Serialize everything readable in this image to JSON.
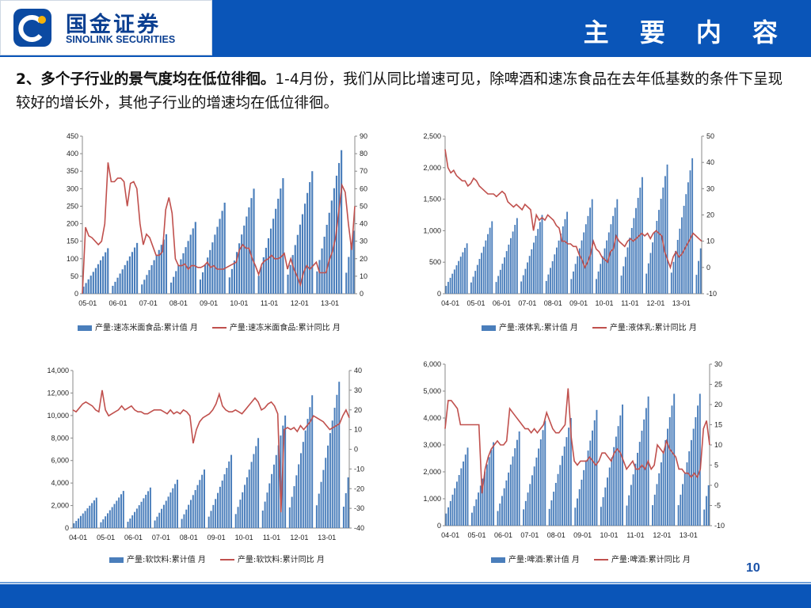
{
  "header": {
    "logo_cn": "国金证券",
    "logo_en": "SINOLINK SECURITIES",
    "title": "主 要 内 容"
  },
  "intro": {
    "lead": "2、多个子行业的景气度均在低位徘徊。",
    "body": "1-4月份，我们从同比增速可见，除啤酒和速冻食品在去年低基数的条件下呈现较好的增长外，其他子行业的增速均在低位徘徊。"
  },
  "page_number": "10",
  "colors": {
    "bar": "#4a7ebb",
    "line": "#c0504d",
    "brand": "#0a55b8"
  },
  "chart_data": [
    {
      "id": "frozen",
      "type": "bar",
      "x_tick_labels": [
        "05-01",
        "06-01",
        "07-01",
        "08-01",
        "09-01",
        "10-01",
        "11-01",
        "12-01",
        "13-01"
      ],
      "y_left_ticks": [
        "450",
        "400",
        "350",
        "300",
        "250",
        "200",
        "150",
        "100",
        "50",
        "0"
      ],
      "y_right_ticks": [
        "90",
        "80",
        "70",
        "60",
        "50",
        "40",
        "30",
        "20",
        "10",
        "0"
      ],
      "ylim_left": [
        0,
        450
      ],
      "ylim_right": [
        0,
        90
      ],
      "years_ann_max": [
        130,
        145,
        170,
        205,
        260,
        300,
        330,
        350,
        410
      ],
      "partial_last_year": [
        60,
        105,
        145,
        180
      ],
      "yoy": [
        0,
        38,
        33,
        32,
        30,
        28,
        30,
        40,
        75,
        64,
        64,
        66,
        66,
        64,
        50,
        63,
        64,
        60,
        40,
        28,
        34,
        32,
        27,
        22,
        22,
        24,
        48,
        55,
        46,
        20,
        16,
        16,
        17,
        14,
        16,
        16,
        15,
        15,
        16,
        18,
        15,
        16,
        14,
        14,
        14,
        15,
        16,
        17,
        18,
        25,
        28,
        26,
        26,
        20,
        16,
        11,
        17,
        19,
        20,
        22,
        20,
        20,
        21,
        23,
        14,
        20,
        14,
        10,
        5,
        12,
        16,
        14,
        16,
        18,
        12,
        12,
        12,
        19,
        24,
        32,
        47,
        62,
        58,
        40,
        25,
        50
      ],
      "legend_bar": "产量:速冻米面食品:累计值 月",
      "legend_line": "产量:速冻米面食品:累计同比 月"
    },
    {
      "id": "milk",
      "type": "bar",
      "x_tick_labels": [
        "04-01",
        "05-01",
        "06-01",
        "07-01",
        "08-01",
        "09-01",
        "10-01",
        "11-01",
        "12-01",
        "13-01"
      ],
      "y_left_ticks": [
        "2,500",
        "2,000",
        "1,500",
        "1,000",
        "500",
        "0"
      ],
      "y_right_ticks": [
        "50",
        "40",
        "30",
        "20",
        "10",
        "0",
        "-10"
      ],
      "ylim_left": [
        0,
        2500
      ],
      "ylim_right": [
        -10,
        50
      ],
      "years_ann_max": [
        800,
        1150,
        1200,
        1250,
        1300,
        1500,
        1500,
        1850,
        2050,
        2150
      ],
      "partial_last_year": [
        300,
        520,
        720
      ],
      "yoy": [
        45,
        38,
        36,
        37,
        35,
        34,
        33,
        33,
        31,
        32,
        34,
        33,
        31,
        30,
        29,
        28,
        28,
        28,
        27,
        28,
        29,
        28,
        25,
        24,
        23,
        24,
        23,
        22,
        24,
        23,
        22,
        14,
        20,
        18,
        19,
        18,
        20,
        19,
        18,
        16,
        15,
        10,
        10,
        9,
        9,
        8,
        8,
        5,
        3,
        0,
        2,
        5,
        10,
        7,
        6,
        4,
        3,
        2,
        6,
        7,
        12,
        10,
        9,
        8,
        10,
        11,
        10,
        11,
        12,
        13,
        12,
        13,
        11,
        13,
        14,
        13,
        12,
        6,
        3,
        0,
        4,
        6,
        4,
        5,
        7,
        9,
        11,
        13,
        12,
        11,
        10
      ],
      "legend_bar": "产量:液体乳:累计值 月",
      "legend_line": "产量:液体乳:累计同比 月"
    },
    {
      "id": "softdrink",
      "type": "bar",
      "x_tick_labels": [
        "04-01",
        "05-01",
        "06-01",
        "07-01",
        "08-01",
        "09-01",
        "10-01",
        "11-01",
        "12-01",
        "13-01"
      ],
      "y_left_ticks": [
        "14,000",
        "12,000",
        "10,000",
        "8,000",
        "6,000",
        "4,000",
        "2,000",
        "0"
      ],
      "y_right_ticks": [
        "40",
        "30",
        "20",
        "10",
        "0",
        "-10",
        "-20",
        "-30",
        "-40"
      ],
      "ylim_left": [
        0,
        14000
      ],
      "ylim_right": [
        -40,
        40
      ],
      "years_ann_max": [
        2700,
        3300,
        3600,
        4300,
        5200,
        6500,
        8000,
        10000,
        11800,
        13000
      ],
      "partial_last_year": [
        1900,
        3100,
        4500
      ],
      "yoy": [
        20,
        19,
        21,
        23,
        24,
        23,
        22,
        20,
        19,
        30,
        20,
        17,
        18,
        19,
        20,
        22,
        20,
        21,
        22,
        20,
        19,
        19,
        18,
        18,
        19,
        20,
        20,
        20,
        19,
        18,
        20,
        18,
        19,
        18,
        20,
        19,
        17,
        3,
        10,
        14,
        16,
        17,
        18,
        20,
        23,
        28,
        22,
        20,
        19,
        19,
        20,
        19,
        18,
        20,
        22,
        24,
        26,
        24,
        20,
        21,
        23,
        24,
        22,
        18,
        -32,
        10,
        11,
        10,
        11,
        9,
        12,
        10,
        12,
        14,
        17,
        16,
        15,
        14,
        12,
        10,
        11,
        12,
        13,
        17,
        20,
        16
      ],
      "legend_bar": "产量:软饮料:累计值 月",
      "legend_line": "产量:软饮料:累计同比 月"
    },
    {
      "id": "beer",
      "type": "bar",
      "x_tick_labels": [
        "04-01",
        "05-01",
        "06-01",
        "07-01",
        "08-01",
        "09-01",
        "10-01",
        "11-01",
        "12-01",
        "13-01"
      ],
      "y_left_ticks": [
        "6,000",
        "5,000",
        "4,000",
        "3,000",
        "2,000",
        "1,000",
        "0"
      ],
      "y_right_ticks": [
        "30",
        "25",
        "20",
        "15",
        "10",
        "5",
        "0",
        "-5",
        "-10"
      ],
      "ylim_left": [
        0,
        6000
      ],
      "ylim_right": [
        -10,
        30
      ],
      "years_ann_max": [
        2900,
        3100,
        3500,
        3900,
        4000,
        4300,
        4500,
        4800,
        4900,
        4900
      ],
      "partial_last_year": [
        600,
        1100,
        1500
      ],
      "yoy": [
        14,
        21,
        21,
        20,
        19,
        15,
        15,
        15,
        15,
        15,
        15,
        15,
        -2,
        4,
        7,
        9,
        10,
        11,
        10,
        10,
        11,
        19,
        18,
        17,
        16,
        15,
        14,
        14,
        13,
        14,
        13,
        14,
        15,
        18,
        16,
        14,
        13,
        13,
        14,
        15,
        24,
        12,
        6,
        5,
        6,
        6,
        6,
        7,
        6,
        5,
        6,
        8,
        8,
        7,
        6,
        8,
        9,
        8,
        6,
        4,
        5,
        6,
        4,
        4,
        5,
        4,
        6,
        4,
        5,
        10,
        9,
        8,
        11,
        9,
        8,
        7,
        4,
        4,
        3,
        3,
        2,
        3,
        2,
        4,
        14,
        16,
        10
      ],
      "legend_bar": "产量:啤酒:累计值 月",
      "legend_line": "产量:啤酒:累计同比 月"
    }
  ]
}
